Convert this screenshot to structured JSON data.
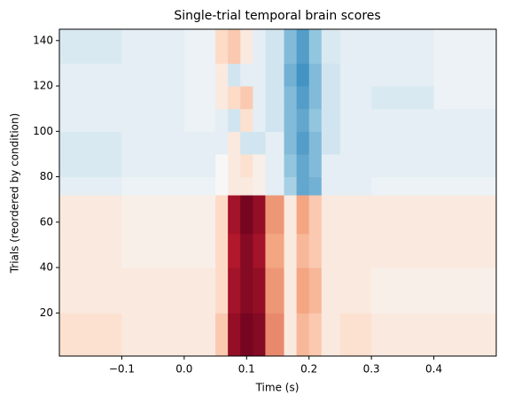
{
  "chart_data": {
    "type": "heatmap",
    "title": "Single-trial temporal brain scores",
    "x_label": "Time (s)",
    "y_label": "Trials (reordered by condition)",
    "colormap": "RdBu_r",
    "clim": [
      -1,
      1
    ],
    "x_edges": [
      -0.2,
      -0.1,
      0,
      0.05,
      0.07,
      0.09,
      0.11,
      0.13,
      0.16,
      0.18,
      0.2,
      0.22,
      0.25,
      0.3,
      0.4,
      0.5
    ],
    "y_edges": [
      1,
      20,
      40,
      55,
      72,
      80,
      90,
      100,
      110,
      120,
      130,
      145
    ],
    "values": [
      [
        0.08,
        0.05,
        0.05,
        0.15,
        0.85,
        0.95,
        0.9,
        0.35,
        0.05,
        0.2,
        0.15,
        0.05,
        0.08,
        0.05,
        0.05
      ],
      [
        0.05,
        0.05,
        0.05,
        0.1,
        0.8,
        0.9,
        0.85,
        0.3,
        0.05,
        0.25,
        0.2,
        0.05,
        0.05,
        0.03,
        0.03
      ],
      [
        0.05,
        0.03,
        0.03,
        0.1,
        0.75,
        0.9,
        0.8,
        0.25,
        0.05,
        0.2,
        0.15,
        0.05,
        0.05,
        0.05,
        0.05
      ],
      [
        0.05,
        0.03,
        0.03,
        0.1,
        0.8,
        0.95,
        0.85,
        0.3,
        0.05,
        0.25,
        0.15,
        0.05,
        0.05,
        0.05,
        0.05
      ],
      [
        -0.05,
        -0.03,
        -0.03,
        0,
        0.05,
        0.05,
        0.03,
        -0.05,
        -0.2,
        -0.4,
        -0.35,
        -0.05,
        -0.05,
        -0.03,
        -0.03
      ],
      [
        -0.08,
        -0.05,
        -0.05,
        0,
        0.05,
        0.08,
        0.03,
        -0.05,
        -0.25,
        -0.4,
        -0.3,
        -0.05,
        -0.05,
        -0.05,
        -0.05
      ],
      [
        -0.08,
        -0.05,
        -0.05,
        -0.05,
        0.05,
        -0.1,
        -0.1,
        -0.05,
        -0.3,
        -0.45,
        -0.3,
        -0.1,
        -0.05,
        -0.05,
        -0.05
      ],
      [
        -0.05,
        -0.05,
        -0.03,
        -0.05,
        -0.1,
        0.08,
        -0.05,
        -0.1,
        -0.3,
        -0.4,
        -0.25,
        -0.1,
        -0.05,
        -0.05,
        -0.05
      ],
      [
        -0.05,
        -0.05,
        -0.03,
        0.05,
        0.1,
        0.15,
        -0.05,
        -0.1,
        -0.3,
        -0.45,
        -0.3,
        -0.1,
        -0.05,
        -0.08,
        -0.03
      ],
      [
        -0.05,
        -0.05,
        -0.03,
        0.05,
        -0.1,
        -0.05,
        -0.05,
        -0.1,
        -0.35,
        -0.5,
        -0.3,
        -0.1,
        -0.05,
        -0.05,
        -0.03
      ],
      [
        -0.08,
        -0.05,
        -0.03,
        0.1,
        0.15,
        0.05,
        -0.05,
        -0.1,
        -0.3,
        -0.45,
        -0.25,
        -0.08,
        -0.05,
        -0.05,
        -0.03
      ]
    ],
    "xlim": [
      -0.2,
      0.5
    ],
    "ylim": [
      1,
      145
    ],
    "xticks": [
      {
        "value": -0.1,
        "label": "−0.1"
      },
      {
        "value": 0,
        "label": "0.0"
      },
      0.1,
      0.2,
      0.3,
      0.4
    ],
    "yticks": [
      20,
      40,
      60,
      80,
      100,
      120,
      140
    ]
  }
}
